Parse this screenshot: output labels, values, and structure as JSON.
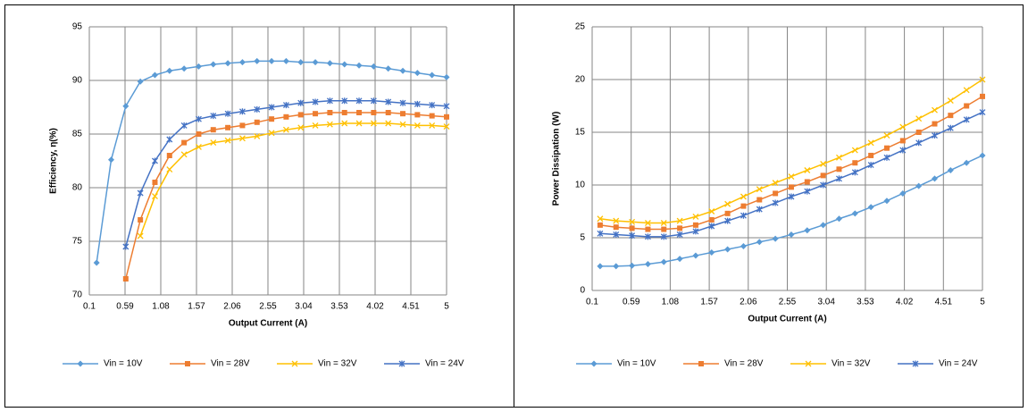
{
  "chart_data": [
    {
      "type": "line",
      "xlabel": "Output Current (A)",
      "ylabel": "Efficiency, η(%)",
      "x": [
        0.2,
        0.4,
        0.6,
        0.8,
        1.0,
        1.2,
        1.4,
        1.6,
        1.8,
        2.0,
        2.2,
        2.4,
        2.6,
        2.8,
        3.0,
        3.2,
        3.4,
        3.6,
        3.8,
        4.0,
        4.2,
        4.4,
        4.6,
        4.8,
        5.0
      ],
      "xlim": [
        0.1,
        5
      ],
      "xticks": [
        0.1,
        0.59,
        1.08,
        1.57,
        2.06,
        2.55,
        3.04,
        3.53,
        4.02,
        4.51,
        5
      ],
      "ylim": [
        70,
        95
      ],
      "yticks": [
        70,
        75,
        80,
        85,
        90,
        95
      ],
      "grid": true,
      "legend": "bottom",
      "series": [
        {
          "name": "Vin = 10V",
          "color": "#5b9bd5",
          "marker": "diamond",
          "values": [
            73,
            82.6,
            87.6,
            89.9,
            90.5,
            90.9,
            91.1,
            91.3,
            91.5,
            91.6,
            91.7,
            91.8,
            91.8,
            91.8,
            91.7,
            91.7,
            91.6,
            91.5,
            91.4,
            91.3,
            91.1,
            90.9,
            90.7,
            90.5,
            90.3
          ]
        },
        {
          "name": "Vin = 28V",
          "color": "#ed7d31",
          "marker": "square",
          "values": [
            null,
            null,
            71.5,
            77,
            80.5,
            83,
            84.2,
            85,
            85.4,
            85.6,
            85.8,
            86.1,
            86.4,
            86.6,
            86.8,
            86.9,
            87,
            87,
            87,
            87,
            87,
            86.9,
            86.8,
            86.7,
            86.6
          ]
        },
        {
          "name": "Vin = 32V",
          "color": "#ffc000",
          "marker": "x",
          "values": [
            null,
            null,
            null,
            75.5,
            79.2,
            81.7,
            83.1,
            83.8,
            84.2,
            84.4,
            84.6,
            84.8,
            85.1,
            85.4,
            85.6,
            85.8,
            85.9,
            86,
            86,
            86,
            86,
            85.9,
            85.8,
            85.8,
            85.7
          ]
        },
        {
          "name": "Vin = 24V",
          "color": "#4472c4",
          "marker": "star",
          "values": [
            null,
            null,
            74.5,
            79.5,
            82.5,
            84.5,
            85.8,
            86.4,
            86.7,
            86.9,
            87.1,
            87.3,
            87.5,
            87.7,
            87.9,
            88,
            88.1,
            88.1,
            88.1,
            88.1,
            88,
            87.9,
            87.8,
            87.7,
            87.6
          ]
        }
      ]
    },
    {
      "type": "line",
      "xlabel": "Output Current (A)",
      "ylabel": "Power Dissipation (W)",
      "x": [
        0.2,
        0.4,
        0.6,
        0.8,
        1.0,
        1.2,
        1.4,
        1.6,
        1.8,
        2.0,
        2.2,
        2.4,
        2.6,
        2.8,
        3.0,
        3.2,
        3.4,
        3.6,
        3.8,
        4.0,
        4.2,
        4.4,
        4.6,
        4.8,
        5.0
      ],
      "xlim": [
        0.1,
        5
      ],
      "xticks": [
        0.1,
        0.59,
        1.08,
        1.57,
        2.06,
        2.55,
        3.04,
        3.53,
        4.02,
        4.51,
        5
      ],
      "ylim": [
        0,
        25
      ],
      "yticks": [
        0,
        5,
        10,
        15,
        20,
        25
      ],
      "grid": true,
      "legend": "bottom",
      "series": [
        {
          "name": "Vin = 10V",
          "color": "#5b9bd5",
          "marker": "diamond",
          "values": [
            2.3,
            2.3,
            2.35,
            2.5,
            2.7,
            3,
            3.3,
            3.6,
            3.9,
            4.2,
            4.6,
            4.9,
            5.3,
            5.7,
            6.2,
            6.8,
            7.3,
            7.9,
            8.5,
            9.2,
            9.9,
            10.6,
            11.4,
            12.1,
            12.8
          ]
        },
        {
          "name": "Vin = 28V",
          "color": "#ed7d31",
          "marker": "square",
          "values": [
            6.2,
            6,
            5.9,
            5.8,
            5.8,
            5.9,
            6.2,
            6.7,
            7.3,
            8,
            8.6,
            9.2,
            9.8,
            10.3,
            10.9,
            11.5,
            12.1,
            12.8,
            13.5,
            14.2,
            15,
            15.8,
            16.6,
            17.5,
            18.4
          ]
        },
        {
          "name": "Vin = 32V",
          "color": "#ffc000",
          "marker": "x",
          "values": [
            6.8,
            6.6,
            6.5,
            6.4,
            6.4,
            6.6,
            7,
            7.5,
            8.2,
            8.9,
            9.6,
            10.2,
            10.8,
            11.4,
            12,
            12.6,
            13.3,
            14,
            14.7,
            15.5,
            16.3,
            17.1,
            18,
            19,
            20
          ]
        },
        {
          "name": "Vin = 24V",
          "color": "#4472c4",
          "marker": "star",
          "values": [
            5.4,
            5.3,
            5.2,
            5.1,
            5.1,
            5.3,
            5.6,
            6.1,
            6.6,
            7.1,
            7.7,
            8.3,
            8.9,
            9.4,
            10,
            10.6,
            11.2,
            11.9,
            12.6,
            13.3,
            14,
            14.7,
            15.4,
            16.2,
            16.9
          ]
        }
      ]
    }
  ]
}
